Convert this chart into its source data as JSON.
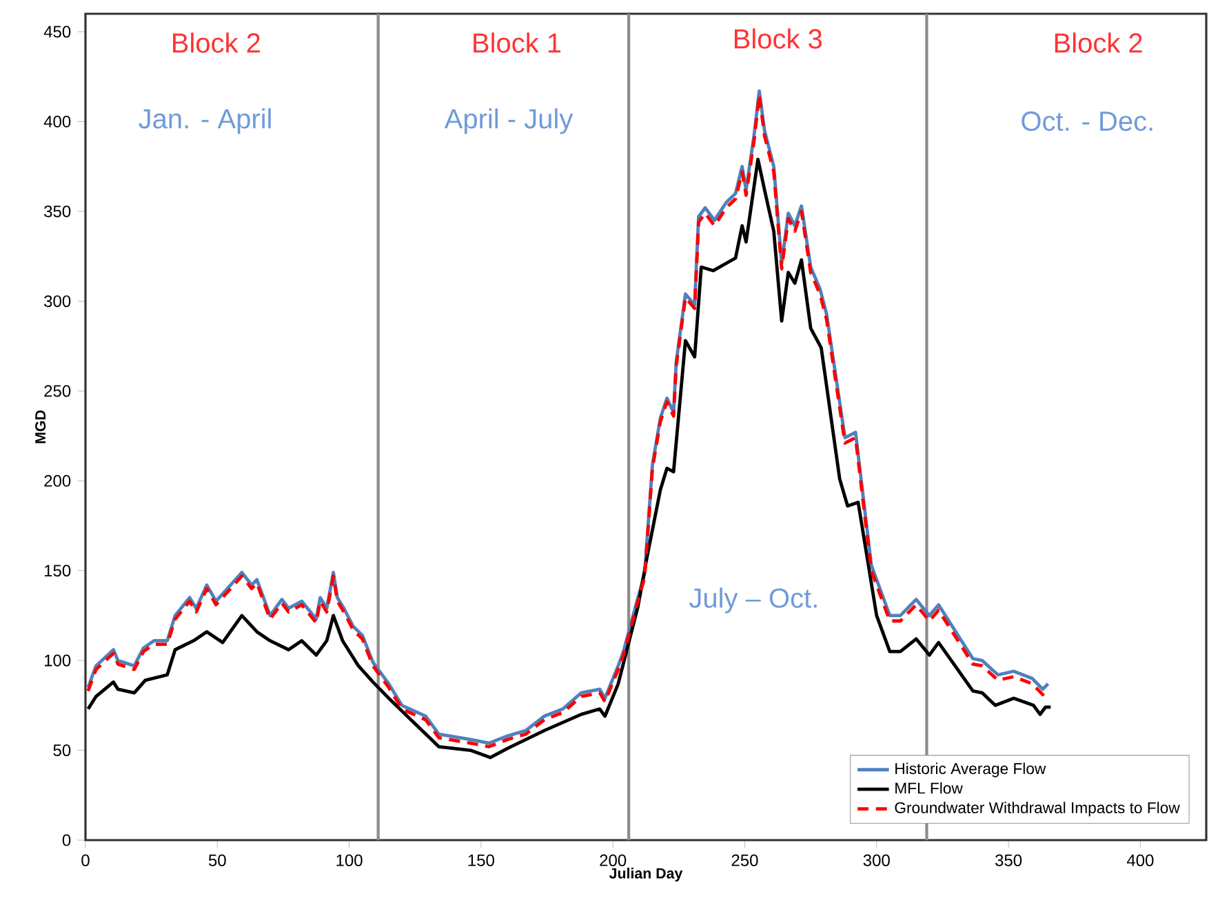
{
  "chart_data": {
    "type": "line",
    "xlabel": "Julian Day",
    "ylabel": "MGD",
    "xlim": [
      0,
      425
    ],
    "ylim": [
      0,
      460
    ],
    "xticks": [
      0,
      50,
      100,
      150,
      200,
      250,
      300,
      350,
      400
    ],
    "yticks": [
      0,
      50,
      100,
      150,
      200,
      250,
      300,
      350,
      400,
      450
    ],
    "legend": "bottom right",
    "grid": false,
    "marker": "none",
    "ref_lines": [
      {
        "axis": "x",
        "value": 111,
        "color": "#8c8c8c"
      },
      {
        "axis": "x",
        "value": 206,
        "color": "#8c8c8c"
      },
      {
        "axis": "x",
        "value": 319,
        "color": "#8c8c8c"
      }
    ],
    "annotations": [
      "Block 2",
      "Jan. - April",
      "Block 1",
      "April - July",
      "Block 3",
      "July – Oct.",
      "Block 2",
      "Oct. - Dec."
    ],
    "series": [
      {
        "name": "Historic Average Flow",
        "color": "#4f81bd",
        "line_style": "solid",
        "x": [
          1,
          4,
          10.6,
          12.3,
          18.5,
          22,
          26,
          31,
          34,
          39.5,
          42,
          46,
          49.5,
          55,
          59.3,
          63,
          65,
          70,
          74.5,
          77,
          82,
          87.5,
          89,
          91.5,
          94,
          95.5,
          98,
          101.5,
          105,
          109,
          115,
          120,
          129,
          134,
          146,
          153,
          160,
          167,
          174,
          181,
          188,
          195,
          197,
          202,
          204,
          209.5,
          212,
          215,
          218,
          220.5,
          223,
          224,
          227.5,
          231,
          232.5,
          235,
          238.5,
          243,
          246.5,
          249,
          250.5,
          253.5,
          255.5,
          257.5,
          261,
          264,
          266.5,
          269,
          271.5,
          275,
          278.5,
          281,
          288,
          292,
          298,
          305,
          309,
          315,
          320,
          323.5,
          336.5,
          340,
          346,
          352,
          359,
          363,
          365
        ],
        "values": [
          85,
          97,
          106,
          100,
          97,
          107,
          111,
          111,
          125,
          135,
          129,
          142,
          133,
          142,
          149,
          142,
          145,
          125,
          134,
          129,
          133,
          123,
          135,
          129,
          149,
          135,
          129,
          119,
          114,
          99,
          87,
          75,
          69,
          59,
          56,
          54,
          58,
          61,
          69,
          73,
          82,
          84,
          79,
          97,
          105,
          135,
          148,
          209,
          235,
          246,
          238,
          266,
          304,
          298,
          347,
          352,
          345,
          355,
          360,
          375,
          362,
          392,
          417,
          395,
          375,
          321,
          349,
          342,
          353,
          319,
          307,
          293,
          224,
          227,
          153,
          125,
          125,
          134,
          125,
          131,
          101,
          100,
          92,
          94,
          90,
          84,
          87
        ]
      },
      {
        "name": "MFL Flow",
        "color": "#000000",
        "line_style": "solid",
        "x": [
          1,
          4,
          10.6,
          12.3,
          18.5,
          22.7,
          31,
          34,
          41,
          46,
          52,
          59.3,
          65,
          70,
          77,
          82,
          87.5,
          91.5,
          94,
          97.5,
          103.5,
          109,
          115,
          122,
          134,
          146,
          153.5,
          160,
          174,
          188,
          195,
          197,
          202,
          209.5,
          213,
          218,
          220.5,
          223,
          227.5,
          231,
          233.5,
          238,
          246.5,
          249,
          250.5,
          255,
          257.5,
          261,
          264,
          266.5,
          269,
          271.5,
          275,
          279,
          286,
          289,
          293,
          300,
          305,
          309,
          315,
          320,
          323.5,
          336.5,
          340,
          345,
          352,
          359.5,
          362,
          364,
          366
        ],
        "values": [
          73,
          80,
          88,
          84,
          82,
          89,
          92,
          106,
          111,
          116,
          110,
          125,
          116,
          111,
          106,
          111,
          103,
          111,
          125,
          111,
          97,
          88,
          79,
          69,
          52,
          50,
          46,
          51,
          61,
          70,
          73,
          69,
          87,
          130,
          158,
          195,
          207,
          205,
          278,
          269,
          319,
          317,
          324,
          342,
          333,
          379,
          362,
          339,
          289,
          316,
          310,
          323,
          285,
          274,
          201,
          186,
          188,
          125,
          105,
          105,
          112,
          103,
          110,
          83,
          82,
          75,
          79,
          75,
          70,
          74,
          74
        ]
      },
      {
        "name": "Groundwater Withdrawal Impacts to Flow",
        "color": "#ff0000",
        "line_style": "dashed",
        "x": [
          1,
          4,
          10.6,
          12.3,
          18.5,
          22,
          26,
          31,
          34,
          39.5,
          42,
          46,
          49.5,
          55,
          59.3,
          63,
          65,
          70,
          74.5,
          77,
          82,
          87.5,
          89,
          91.5,
          94,
          95.5,
          98,
          101.5,
          105,
          109,
          115,
          120,
          129,
          134,
          146,
          153,
          160,
          167,
          174,
          181,
          188,
          195,
          197,
          202,
          204,
          209.5,
          212,
          215,
          218,
          220.5,
          223,
          224,
          227.5,
          231,
          232.5,
          235,
          238.5,
          243,
          246.5,
          249,
          250.5,
          253.5,
          255.5,
          257.5,
          261,
          264,
          266.5,
          269,
          271.5,
          275,
          278.5,
          281,
          288,
          292,
          298,
          305,
          309,
          315,
          320,
          323.5,
          336.5,
          340,
          346,
          352,
          359,
          363,
          365
        ],
        "values": [
          83,
          95,
          104,
          98,
          95,
          105,
          109,
          109,
          123,
          133,
          127,
          140,
          131,
          140,
          147,
          140,
          143,
          123,
          132,
          127,
          131,
          121,
          133,
          127,
          147,
          133,
          127,
          117,
          112,
          97,
          85,
          73,
          67,
          57,
          54,
          52,
          56,
          59,
          67,
          71,
          80,
          82,
          77,
          95,
          103,
          133,
          146,
          207,
          233,
          244,
          236,
          264,
          302,
          296,
          344,
          349,
          342,
          352,
          357,
          372,
          359,
          389,
          415,
          392,
          372,
          318,
          346,
          339,
          350,
          316,
          304,
          290,
          221,
          224,
          150,
          122,
          122,
          131,
          122,
          128,
          98,
          97,
          89,
          91,
          87,
          81,
          84
        ]
      }
    ]
  }
}
